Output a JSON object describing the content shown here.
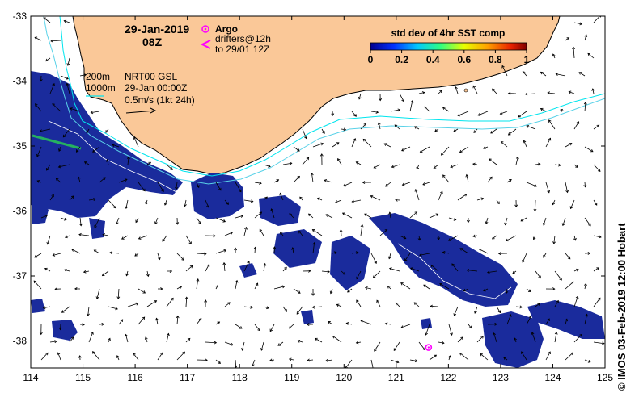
{
  "header": {
    "date": "29-Jan-2019",
    "time": "08Z"
  },
  "legend": {
    "argo_label": "Argo",
    "drifter_label_line1": "drifters@12h",
    "drifter_label_line2": "to 29/01 12Z",
    "colorbar_title": "std dev of 4hr SST comp",
    "colorbar_ticks": [
      "0",
      "0.2",
      "0.4",
      "0.6",
      "0.8",
      "1"
    ],
    "contour_200": "200m",
    "contour_1000": "1000m",
    "product_line1": "NRT00 GSL",
    "product_line2": "29-Jan 00:00Z",
    "product_line3": "0.5m/s (1kt 24h)"
  },
  "axes": {
    "lon_ticks": [
      "114",
      "115",
      "116",
      "117",
      "118",
      "119",
      "120",
      "121",
      "122",
      "123",
      "124",
      "125"
    ],
    "lat_ticks": [
      "-33",
      "-34",
      "-35",
      "-36",
      "-37",
      "-38"
    ]
  },
  "credit": "© IMOS 03-Feb-2019 12:00 Hobart",
  "colors": {
    "land": "#fac898",
    "sst_patch": "#1a2b9c",
    "contour_200": "#00e5ee",
    "contour_1000": "#5ad2e8",
    "argo": "#ff00ff",
    "drifter": "#ff00ff"
  },
  "map_data": {
    "lon_range": [
      114,
      125
    ],
    "lat_range": [
      -38.5,
      -33
    ],
    "argo_float": {
      "lon": 121.62,
      "lat": -38.1
    }
  }
}
